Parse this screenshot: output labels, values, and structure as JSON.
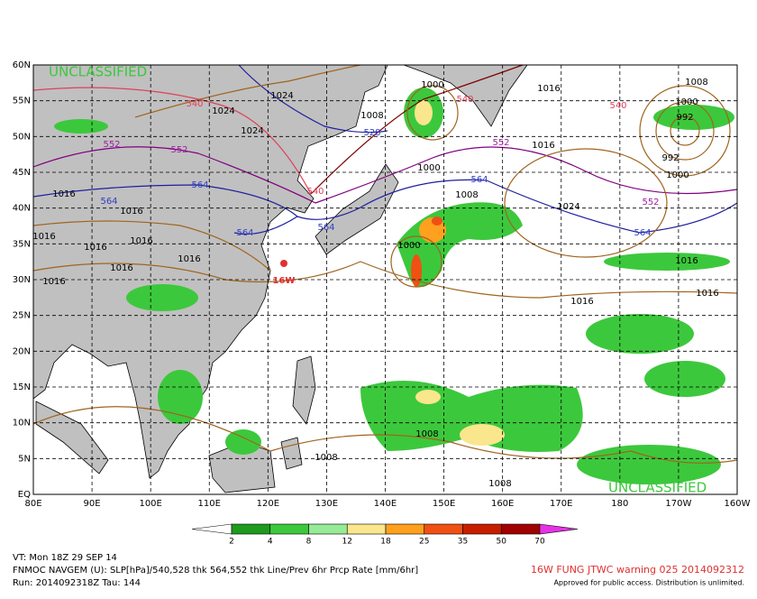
{
  "map": {
    "watermark_top": "UNCLASSIFIED",
    "watermark_bottom": "UNCLASSIFIED",
    "lat_labels": [
      "60N",
      "55N",
      "50N",
      "45N",
      "40N",
      "35N",
      "30N",
      "25N",
      "20N",
      "15N",
      "10N",
      "5N",
      "EQ"
    ],
    "lon_labels": [
      "80E",
      "90E",
      "100E",
      "110E",
      "120E",
      "130E",
      "140E",
      "150E",
      "160E",
      "170E",
      "180",
      "170W",
      "160W"
    ],
    "storm_label": "16W",
    "contour_labels": [
      "1024",
      "540",
      "1024",
      "1024",
      "552",
      "552",
      "564",
      "564",
      "1016",
      "1016",
      "1016",
      "1016",
      "1016",
      "1016",
      "1016",
      "1016",
      "564",
      "564",
      "540",
      "1000",
      "540",
      "1008",
      "528",
      "1016",
      "1008",
      "540",
      "1000",
      "992",
      "552",
      "1016",
      "992",
      "1000",
      "1000",
      "1008",
      "564",
      "1024",
      "552",
      "564",
      "1000",
      "1016",
      "1016",
      "1016",
      "1008",
      "1008",
      "1008"
    ]
  },
  "colorbar": {
    "labels": [
      "2",
      "4",
      "8",
      "12",
      "18",
      "25",
      "35",
      "50",
      "70"
    ],
    "colors": [
      "#1e9a1e",
      "#3cc83c",
      "#96eb96",
      "#fae68c",
      "#ffa01e",
      "#f05014",
      "#c81e00",
      "#a00000"
    ],
    "low_color": "#ffffff",
    "high_color": "#e632e6"
  },
  "footer": {
    "valid_time": "VT: Mon 18Z 29 SEP 14",
    "product": "FNMOC NAVGEM (U): SLP[hPa]/540,528 thk 564,552 thk Line/Prev 6hr Prcp Rate [mm/6hr]",
    "run": "Run: 2014092318Z Tau: 144",
    "warning": "16W FUNG JTWC warning 025 2014092312",
    "release": "Approved for public access. Distribution is unlimited."
  }
}
